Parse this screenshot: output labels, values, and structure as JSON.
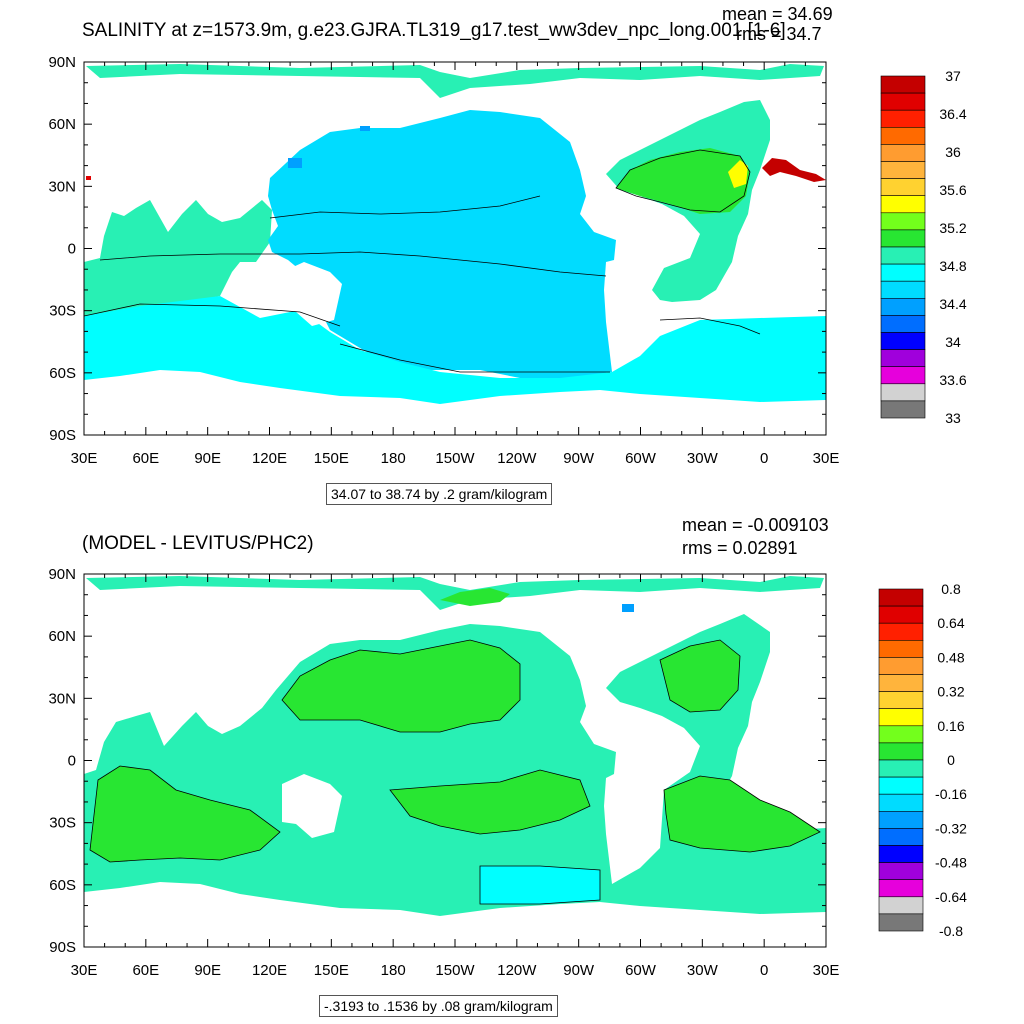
{
  "panels": [
    {
      "id": "top",
      "title": "SALINITY at z=1573.9m, g.e23.GJRA.TL319_g17.test_ww3dev_npc_long.001 [1-6]",
      "mean_label": "mean = 34.69",
      "rms_label": "rms = 34.7",
      "info_label": "34.07 to 38.74 by .2 gram/kilogram",
      "colorbar_labels": [
        "37",
        "36.4",
        "36",
        "35.6",
        "35.2",
        "34.8",
        "34.4",
        "34",
        "33.6",
        "33"
      ],
      "colorbar_colors": [
        "#c40000",
        "#e00000",
        "#ff2000",
        "#ff6a00",
        "#ff9c30",
        "#ffb43c",
        "#ffd230",
        "#ffff00",
        "#73ff1c",
        "#28e632",
        "#28f0b4",
        "#00ffff",
        "#00dcff",
        "#00a0ff",
        "#006eff",
        "#0000ff",
        "#a000dc",
        "#e600dc",
        "#d2d2d2",
        "#787878"
      ]
    },
    {
      "id": "bottom",
      "title": "(MODEL - LEVITUS/PHC2)",
      "mean_label": "mean = -0.009103",
      "rms_label": "rms = 0.02891",
      "info_label": "-.3193 to .1536 by .08 gram/kilogram",
      "colorbar_labels": [
        "0.8",
        "0.64",
        "0.48",
        "0.32",
        "0.16",
        "0",
        "-0.16",
        "-0.32",
        "-0.48",
        "-0.64",
        "-0.8"
      ],
      "colorbar_colors": [
        "#c40000",
        "#e00000",
        "#ff2000",
        "#ff6a00",
        "#ff9c30",
        "#ffb43c",
        "#ffd230",
        "#ffff00",
        "#73ff1c",
        "#28e632",
        "#28f0b4",
        "#00ffff",
        "#00dcff",
        "#00a0ff",
        "#006eff",
        "#0000ff",
        "#a000dc",
        "#e600dc",
        "#d2d2d2",
        "#787878"
      ]
    }
  ],
  "axes": {
    "lat_labels": [
      "90N",
      "60N",
      "30N",
      "0",
      "30S",
      "60S",
      "90S"
    ],
    "lon_labels": [
      "30E",
      "60E",
      "90E",
      "120E",
      "150E",
      "180",
      "150W",
      "120W",
      "90W",
      "60W",
      "30W",
      "0",
      "30E"
    ]
  },
  "colors": {
    "land": "#ffffff",
    "top_ocean": "#00ffff",
    "top_pacific": "#00dcff",
    "top_atlantic": "#28f0b4",
    "bottom_ocean": "#28f0b4",
    "bottom_positive": "#28e632"
  }
}
